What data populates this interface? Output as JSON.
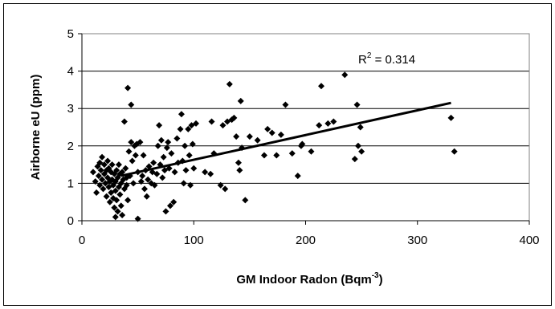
{
  "chart_data": {
    "type": "scatter",
    "title": "",
    "xlabel": "GM Indoor Radon (Bqm",
    "xlabel_superscript": "-3",
    "xlabel_suffix": ")",
    "ylabel": "Airborne eU (ppm)",
    "xlim": [
      0,
      400
    ],
    "ylim": [
      0,
      5
    ],
    "xticks": [
      "0",
      "100",
      "200",
      "300",
      "400"
    ],
    "yticks": [
      "0",
      "1",
      "2",
      "3",
      "4",
      "5"
    ],
    "grid": "horizontal",
    "legend": "none",
    "marker_color": "#000000",
    "annotation": {
      "base": "R",
      "superscript": "2",
      "rest": " = 0.314"
    },
    "trendline": {
      "x": [
        35,
        330
      ],
      "y": [
        1.2,
        3.15
      ]
    },
    "points": [
      [
        10,
        1.3
      ],
      [
        12,
        1.05
      ],
      [
        13,
        0.75
      ],
      [
        14,
        1.45
      ],
      [
        15,
        1.2
      ],
      [
        16,
        1.55
      ],
      [
        16,
        0.95
      ],
      [
        17,
        1.35
      ],
      [
        18,
        1.7
      ],
      [
        18,
        1.1
      ],
      [
        19,
        0.85
      ],
      [
        20,
        1.25
      ],
      [
        20,
        1.5
      ],
      [
        21,
        1.0
      ],
      [
        22,
        1.35
      ],
      [
        22,
        0.65
      ],
      [
        23,
        1.15
      ],
      [
        23,
        1.6
      ],
      [
        24,
        0.9
      ],
      [
        24,
        1.4
      ],
      [
        25,
        1.05
      ],
      [
        25,
        0.5
      ],
      [
        26,
        1.3
      ],
      [
        26,
        0.75
      ],
      [
        27,
        1.5
      ],
      [
        27,
        1.1
      ],
      [
        28,
        0.95
      ],
      [
        28,
        0.6
      ],
      [
        29,
        1.25
      ],
      [
        29,
        0.35
      ],
      [
        30,
        1.05
      ],
      [
        30,
        0.8
      ],
      [
        30,
        0.1
      ],
      [
        31,
        1.35
      ],
      [
        31,
        0.55
      ],
      [
        32,
        1.15
      ],
      [
        32,
        0.25
      ],
      [
        33,
        0.9
      ],
      [
        33,
        1.5
      ],
      [
        34,
        1.25
      ],
      [
        34,
        0.7
      ],
      [
        35,
        1.0
      ],
      [
        35,
        0.4
      ],
      [
        36,
        1.3
      ],
      [
        36,
        0.15
      ],
      [
        37,
        1.1
      ],
      [
        38,
        0.85
      ],
      [
        38,
        2.65
      ],
      [
        39,
        1.4
      ],
      [
        40,
        1.15
      ],
      [
        40,
        0.95
      ],
      [
        41,
        3.55
      ],
      [
        41,
        0.55
      ],
      [
        42,
        1.85
      ],
      [
        43,
        1.2
      ],
      [
        44,
        3.1
      ],
      [
        44,
        2.1
      ],
      [
        45,
        1.6
      ],
      [
        46,
        1.0
      ],
      [
        47,
        2.0
      ],
      [
        48,
        1.75
      ],
      [
        49,
        2.05
      ],
      [
        50,
        1.3
      ],
      [
        50,
        0.05
      ],
      [
        52,
        2.1
      ],
      [
        53,
        1.05
      ],
      [
        54,
        1.2
      ],
      [
        55,
        1.75
      ],
      [
        56,
        0.85
      ],
      [
        57,
        1.35
      ],
      [
        58,
        0.65
      ],
      [
        59,
        1.1
      ],
      [
        60,
        1.45
      ],
      [
        62,
        1.0
      ],
      [
        63,
        1.3
      ],
      [
        64,
        1.55
      ],
      [
        65,
        0.95
      ],
      [
        67,
        1.25
      ],
      [
        68,
        2.0
      ],
      [
        69,
        2.55
      ],
      [
        70,
        1.5
      ],
      [
        71,
        2.15
      ],
      [
        72,
        1.15
      ],
      [
        73,
        1.7
      ],
      [
        74,
        1.35
      ],
      [
        75,
        0.25
      ],
      [
        76,
        1.95
      ],
      [
        77,
        2.1
      ],
      [
        78,
        1.4
      ],
      [
        79,
        0.4
      ],
      [
        80,
        1.8
      ],
      [
        82,
        0.5
      ],
      [
        83,
        1.3
      ],
      [
        85,
        2.2
      ],
      [
        86,
        1.55
      ],
      [
        88,
        2.45
      ],
      [
        89,
        2.85
      ],
      [
        90,
        1.6
      ],
      [
        91,
        1.0
      ],
      [
        92,
        2.0
      ],
      [
        93,
        1.35
      ],
      [
        95,
        2.45
      ],
      [
        96,
        1.75
      ],
      [
        97,
        0.95
      ],
      [
        98,
        2.55
      ],
      [
        99,
        2.05
      ],
      [
        100,
        1.4
      ],
      [
        102,
        2.6
      ],
      [
        110,
        1.3
      ],
      [
        115,
        1.25
      ],
      [
        116,
        2.65
      ],
      [
        118,
        1.8
      ],
      [
        124,
        0.95
      ],
      [
        126,
        2.55
      ],
      [
        128,
        0.85
      ],
      [
        130,
        2.65
      ],
      [
        132,
        3.65
      ],
      [
        134,
        2.7
      ],
      [
        136,
        2.75
      ],
      [
        138,
        2.25
      ],
      [
        140,
        1.55
      ],
      [
        141,
        1.35
      ],
      [
        142,
        3.2
      ],
      [
        143,
        1.95
      ],
      [
        146,
        0.55
      ],
      [
        150,
        2.25
      ],
      [
        157,
        2.15
      ],
      [
        163,
        1.75
      ],
      [
        166,
        2.45
      ],
      [
        170,
        2.35
      ],
      [
        174,
        1.75
      ],
      [
        178,
        2.3
      ],
      [
        182,
        3.1
      ],
      [
        188,
        1.8
      ],
      [
        193,
        1.2
      ],
      [
        196,
        2.0
      ],
      [
        197,
        2.05
      ],
      [
        205,
        1.85
      ],
      [
        212,
        2.55
      ],
      [
        214,
        3.6
      ],
      [
        220,
        2.6
      ],
      [
        225,
        2.65
      ],
      [
        235,
        3.9
      ],
      [
        244,
        1.65
      ],
      [
        246,
        3.1
      ],
      [
        247,
        2.0
      ],
      [
        249,
        2.5
      ],
      [
        250,
        1.85
      ],
      [
        330,
        2.75
      ],
      [
        333,
        1.85
      ]
    ]
  }
}
